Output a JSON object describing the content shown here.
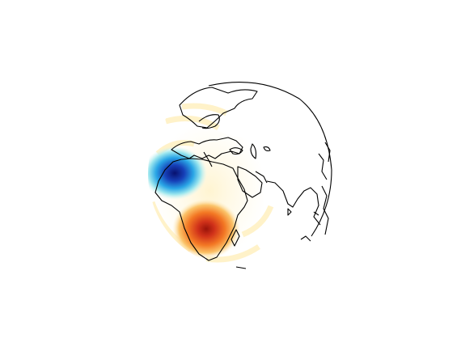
{
  "map": {
    "projection": "orthographic",
    "center_lon": 40,
    "center_lat": 20,
    "coastline_color": "#000000",
    "background": "#ffffff",
    "anomalies": [
      {
        "name": "negative-anomaly",
        "lon": -5,
        "lat": 20,
        "color": "#08106e",
        "sign": "negative"
      },
      {
        "name": "positive-anomaly",
        "lon": 28,
        "lat": -18,
        "color": "#b11c0e",
        "sign": "positive"
      }
    ],
    "colormap": [
      "#08106e",
      "#1e6fd9",
      "#4cc4e4",
      "#b8ecf0",
      "#fff6d0",
      "#ffd27a",
      "#f57a23",
      "#b11c0e"
    ]
  }
}
